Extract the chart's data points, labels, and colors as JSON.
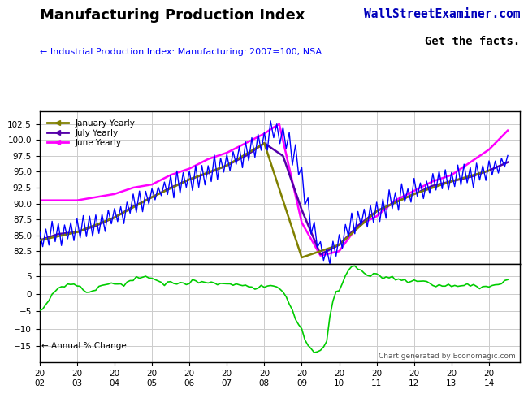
{
  "title": "Manufacturing Production Index",
  "watermark1": "WallStreetExaminer.com",
  "watermark2": "Get the facts.",
  "subtitle": "← Industrial Production Index: Manufacturing: 2007=100; NSA",
  "footnote": "Chart generated by Economagic.com",
  "bg_color": "#ffffff",
  "grid_color": "#cccccc",
  "upper_ylim": [
    80.5,
    104.5
  ],
  "upper_yticks": [
    82.5,
    85.0,
    87.5,
    90.0,
    92.5,
    95.0,
    97.5,
    100.0,
    102.5
  ],
  "lower_ylim": [
    -19.5,
    8.5
  ],
  "lower_yticks": [
    -15.0,
    -10.0,
    -5.0,
    0.0,
    5.0
  ],
  "mpi_color": "#0000ff",
  "jan_color": "#808000",
  "jul_color": "#5500aa",
  "jun_color": "#ff00ff",
  "ann_color": "#00cc00",
  "legend_entries": [
    "January Yearly",
    "July Yearly",
    "June Yearly"
  ],
  "ann_label": "← Annual % Change"
}
